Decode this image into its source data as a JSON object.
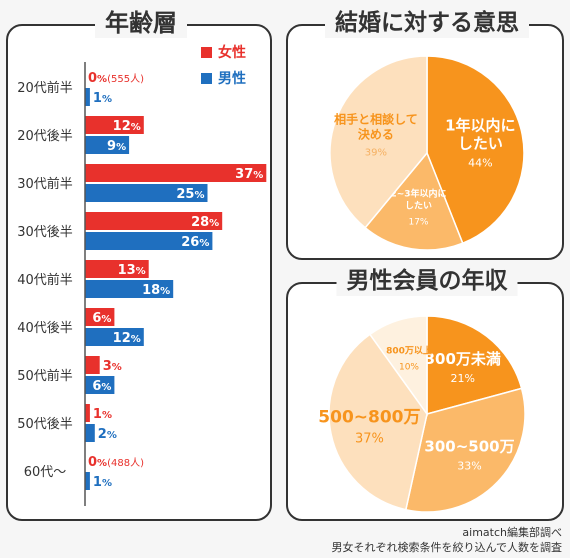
{
  "colors": {
    "female": "#e8312c",
    "male": "#1f6fbf",
    "axis": "#555555"
  },
  "age_chart": {
    "title": "年齢層",
    "legend": {
      "female": "女性",
      "male": "男性"
    },
    "unit": "%",
    "rows": [
      {
        "label": "20代前半",
        "female": 0,
        "male": 1,
        "female_note": "(555人)",
        "male_note": ""
      },
      {
        "label": "20代後半",
        "female": 12,
        "male": 9,
        "female_note": "",
        "male_note": ""
      },
      {
        "label": "30代前半",
        "female": 37,
        "male": 25,
        "female_note": "",
        "male_note": ""
      },
      {
        "label": "30代後半",
        "female": 28,
        "male": 26,
        "female_note": "",
        "male_note": ""
      },
      {
        "label": "40代前半",
        "female": 13,
        "male": 18,
        "female_note": "",
        "male_note": ""
      },
      {
        "label": "40代後半",
        "female": 6,
        "male": 12,
        "female_note": "",
        "male_note": ""
      },
      {
        "label": "50代前半",
        "female": 3,
        "male": 6,
        "female_note": "",
        "male_note": ""
      },
      {
        "label": "50代後半",
        "female": 1,
        "male": 2,
        "female_note": "",
        "male_note": ""
      },
      {
        "label": "60代〜",
        "female": 0,
        "male": 1,
        "female_note": "(488人)",
        "male_note": ""
      }
    ]
  },
  "chart_data": [
    {
      "type": "bar",
      "title": "年齢層",
      "categories": [
        "20代前半",
        "20代後半",
        "30代前半",
        "30代後半",
        "40代前半",
        "40代後半",
        "50代前半",
        "50代後半",
        "60代〜"
      ],
      "series": [
        {
          "name": "女性",
          "values": [
            0,
            12,
            37,
            28,
            13,
            6,
            3,
            1,
            0
          ]
        },
        {
          "name": "男性",
          "values": [
            1,
            9,
            25,
            26,
            18,
            12,
            6,
            2,
            1
          ]
        }
      ],
      "legend": "top-right"
    },
    {
      "type": "pie",
      "title": "結婚に対する意思",
      "slices": [
        {
          "label": "1年以内にしたい",
          "value": 44,
          "color": "#f7941d"
        },
        {
          "label": "2~3年以内にしたい",
          "value": 17,
          "color": "#fbb969"
        },
        {
          "label": "相手と相談して決める",
          "value": 39,
          "color": "#fde0bd"
        }
      ]
    },
    {
      "type": "pie",
      "title": "男性会員の年収",
      "slices": [
        {
          "label": "300万未満",
          "value": 21,
          "color": "#f7941d"
        },
        {
          "label": "300~500万",
          "value": 33,
          "color": "#fbb969"
        },
        {
          "label": "500~800万",
          "value": 37,
          "color": "#fde0bd"
        },
        {
          "label": "800万以上",
          "value": 10,
          "color": "#fef1df"
        }
      ]
    }
  ],
  "marriage_chart": {
    "title": "結婚に対する意思",
    "slices": [
      {
        "label": [
          "1年以内に",
          "したい"
        ],
        "value": 44,
        "color": "#f7941d",
        "text_color": "#ffffff",
        "value_color": "#ffffff",
        "size": "large"
      },
      {
        "label": [
          "2~3年以内に",
          "したい"
        ],
        "value": 17,
        "color": "#fbb969",
        "text_color": "#ffffff",
        "value_color": "#ffffff",
        "size": "small"
      },
      {
        "label": [
          "相手と相談して",
          "決める"
        ],
        "value": 39,
        "color": "#fde0bd",
        "text_color": "#f7941d",
        "value_color": "#f5b062",
        "size": "medium"
      }
    ]
  },
  "income_chart": {
    "title": "男性会員の年収",
    "slices": [
      {
        "label": [
          "300万未満"
        ],
        "value": 21,
        "color": "#f7941d",
        "text_color": "#ffffff",
        "value_color": "#ffffff",
        "size": "large"
      },
      {
        "label": [
          "300~500万"
        ],
        "value": 33,
        "color": "#fbb969",
        "text_color": "#ffffff",
        "value_color": "#ffffff",
        "size": "large"
      },
      {
        "label": [
          "500~800万"
        ],
        "value": 37,
        "color": "#fde0bd",
        "text_color": "#f7941d",
        "value_color": "#f7941d",
        "size": "xlarge"
      },
      {
        "label": [
          "800万以上"
        ],
        "value": 10,
        "color": "#fef1df",
        "text_color": "#f7941d",
        "value_color": "#f7941d",
        "size": "small"
      }
    ]
  },
  "footer": {
    "line1": "aimatch編集部調べ",
    "line2": "男女それぞれ検索条件を絞り込んで人数を調査"
  }
}
